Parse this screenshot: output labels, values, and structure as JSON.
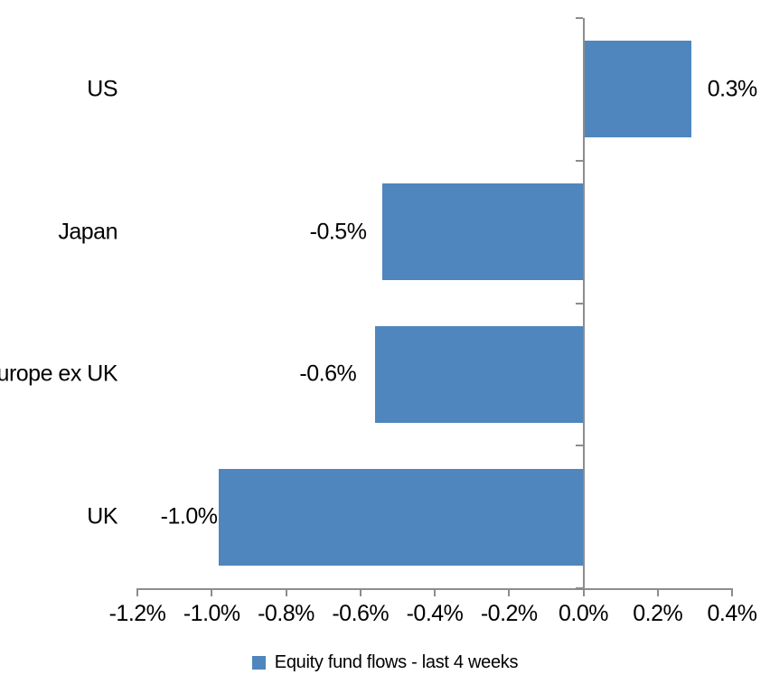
{
  "chart_data": {
    "type": "bar",
    "orientation": "horizontal",
    "categories": [
      "US",
      "Japan",
      "Europe ex UK",
      "UK"
    ],
    "values": [
      0.3,
      -0.5,
      -0.6,
      -1.0
    ],
    "value_labels": [
      "0.3%",
      "-0.5%",
      "-0.6%",
      "-1.0%"
    ],
    "bar_render_values": [
      0.29,
      -0.54,
      -0.56,
      -0.98
    ],
    "x_tick_labels": [
      "-1.2%",
      "-1.0%",
      "-0.8%",
      "-0.6%",
      "-0.4%",
      "-0.2%",
      "0.0%",
      "0.2%",
      "0.4%"
    ],
    "xlim": [
      -1.2,
      0.4
    ],
    "x_tick_step": 0.2,
    "value_unit": "%",
    "grid": false,
    "legend": {
      "label": "Equity fund flows - last 4 weeks",
      "position": "bottom"
    },
    "colors": {
      "bar": "#4E86BD",
      "axis": "#8C8C8C",
      "text": "#000000",
      "background": "#FFFFFF"
    }
  }
}
